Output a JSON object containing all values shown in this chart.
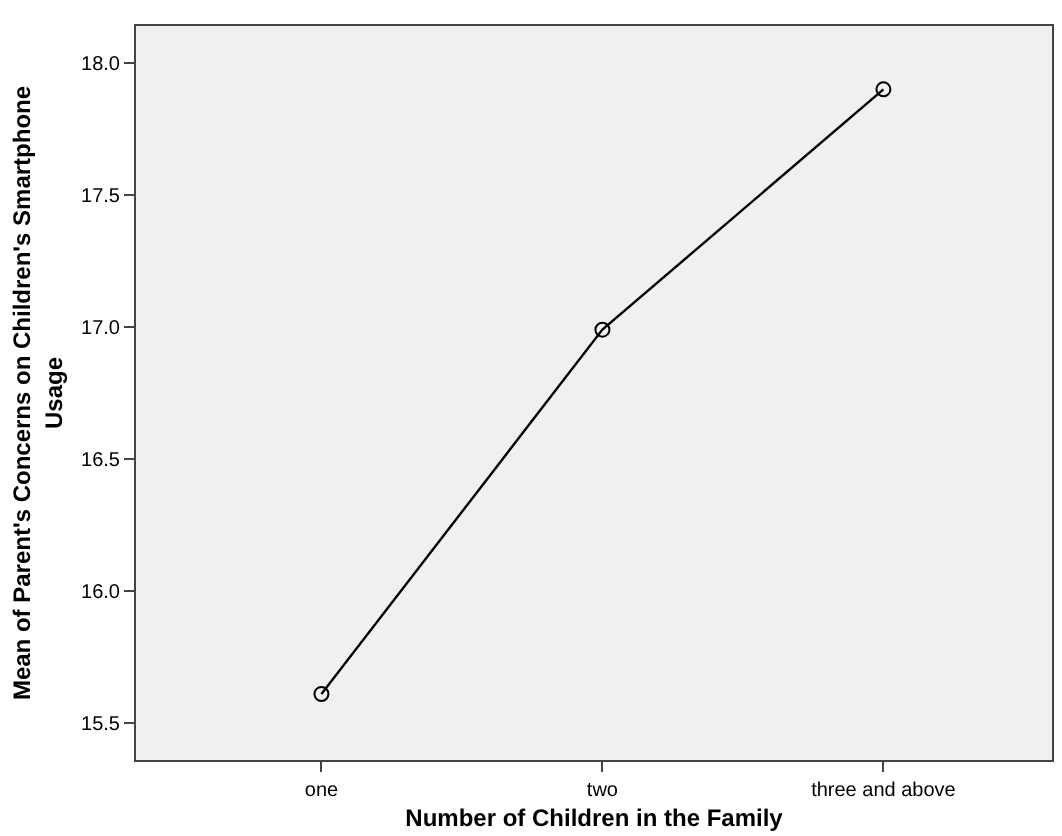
{
  "chart_data": {
    "type": "line",
    "xlabel": "Number of Children in the Family",
    "ylabel": "Mean of Parent's Concerns on Children's Smartphone Usage",
    "categories": [
      "one",
      "two",
      "three and above"
    ],
    "series": [
      {
        "color": "#000000",
        "values": [
          15.61,
          16.99,
          17.9
        ]
      }
    ],
    "ylim": [
      15.36,
      18.14
    ],
    "yticks": [
      {
        "value": 15.5,
        "label": "15.5"
      },
      {
        "value": 16.0,
        "label": "16.0"
      },
      {
        "value": 16.5,
        "label": "16.5"
      },
      {
        "value": 17.0,
        "label": "17.0"
      },
      {
        "value": 17.5,
        "label": "17.5"
      },
      {
        "value": 18.0,
        "label": "18.0"
      }
    ],
    "grid": false,
    "legend": false,
    "marker": "circle",
    "line_style": "solid"
  }
}
